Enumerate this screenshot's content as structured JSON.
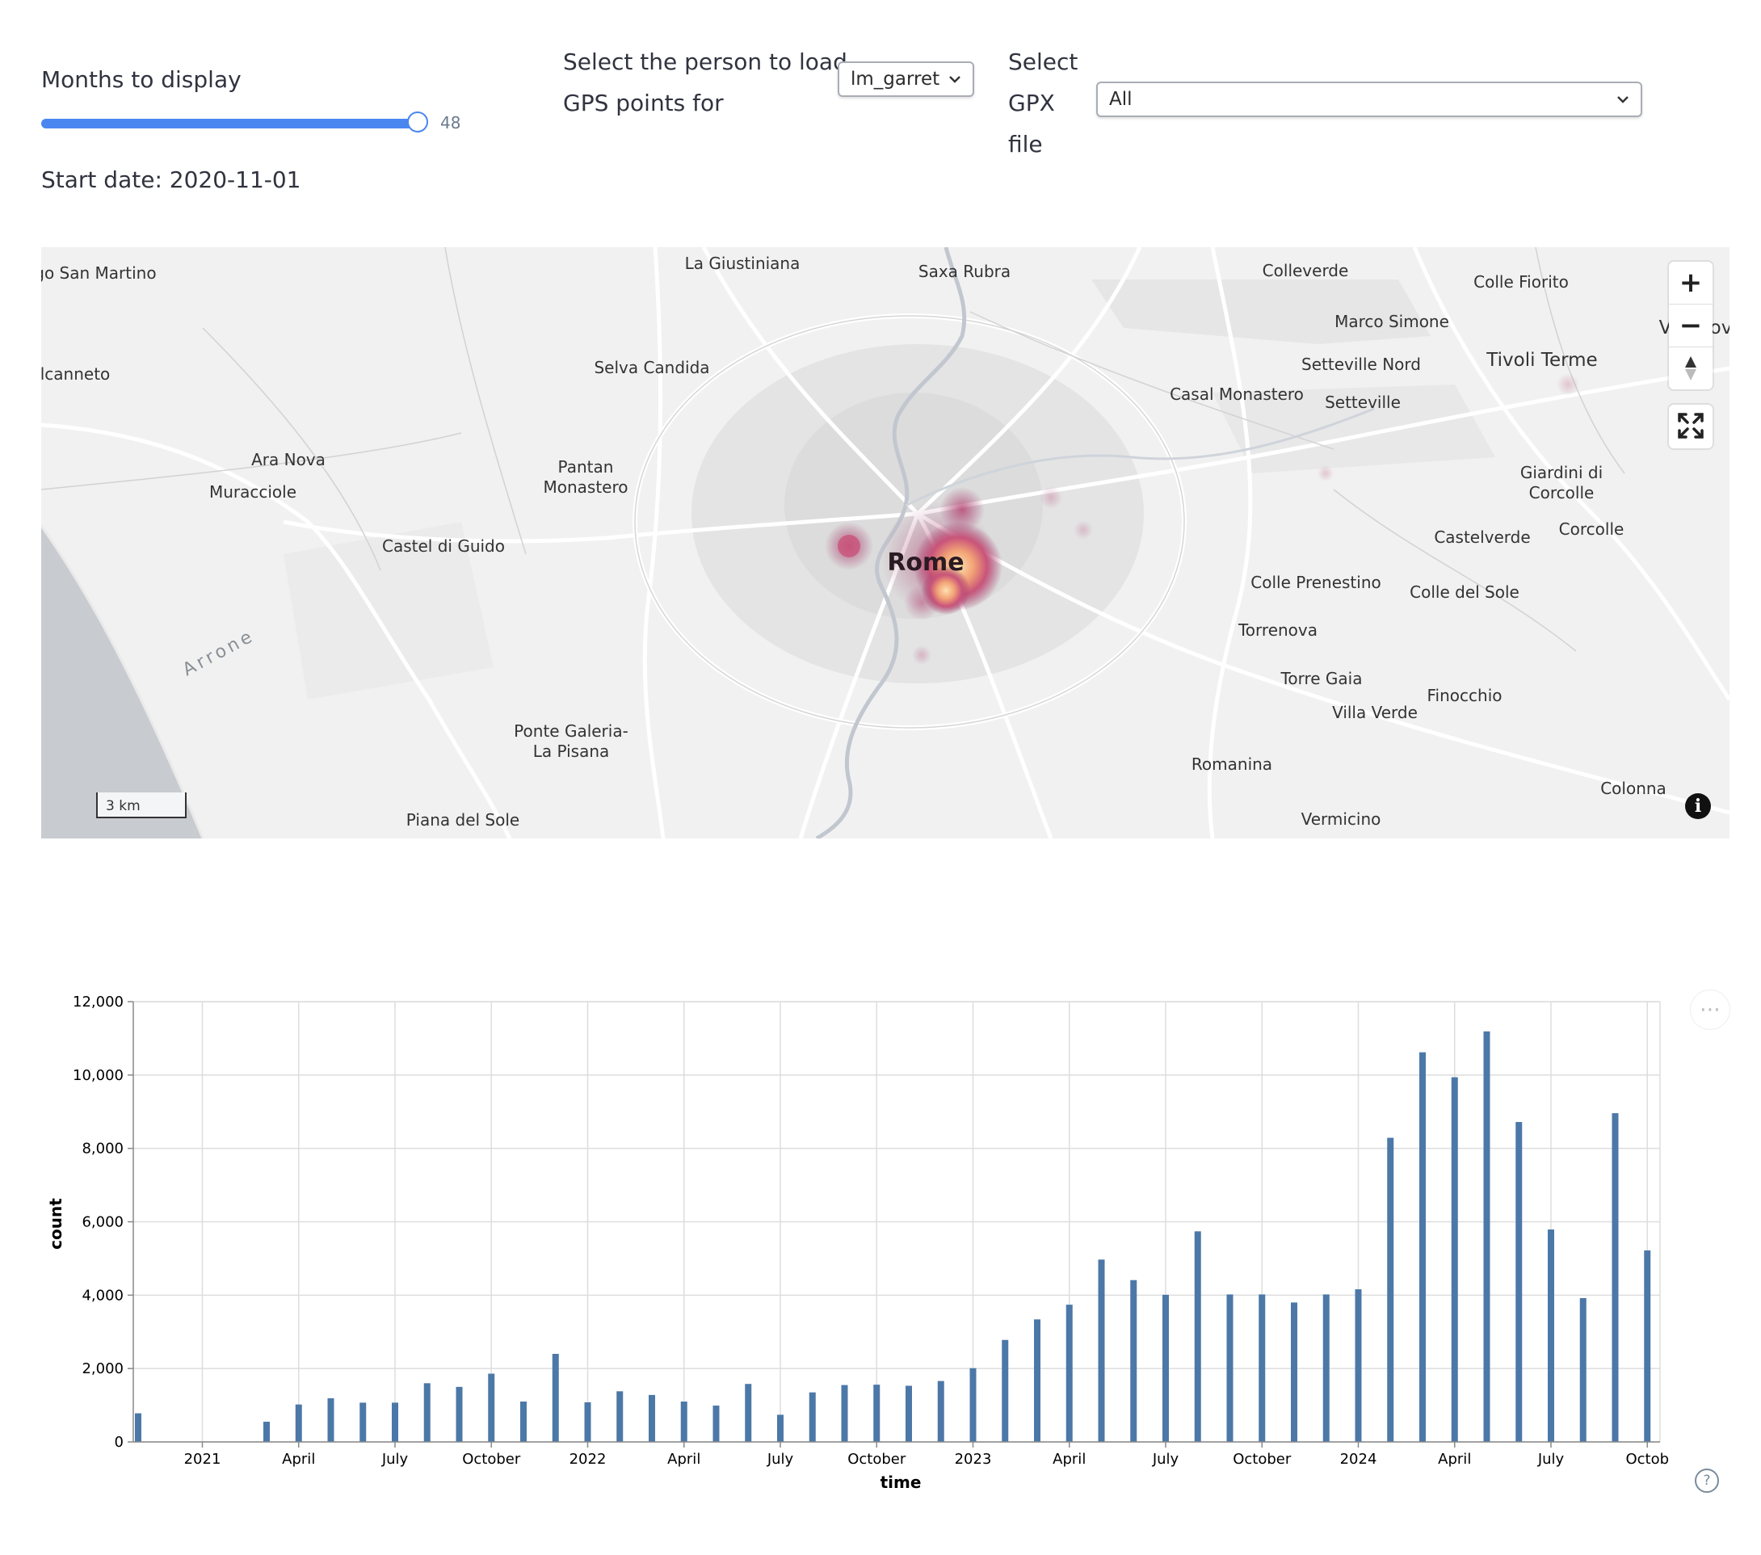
{
  "controls": {
    "months_label": "Months to display",
    "months_value": 48,
    "months_max": 48,
    "start_date": "Start date: 2020-11-01",
    "person_label_line1": "Select the person to load",
    "person_label_line2": "GPS points for",
    "person_value": "lm_garret",
    "gpx_label_line1": "Select",
    "gpx_label_line2": "GPX",
    "gpx_label_line3": "file",
    "gpx_value": "All"
  },
  "map": {
    "scale_label": "3 km",
    "zoom_in": "+",
    "zoom_out": "−",
    "places": [
      "Borgo San\nMartino",
      "La Giustiniana",
      "Saxa Rubra",
      "Colleverde",
      "Colle Fiorito",
      "Marco Simone",
      "Villanova",
      "lcanneto",
      "Selva Candida",
      "Setteville Nord",
      "Tivoli Terme",
      "Casal Monastero",
      "Setteville",
      "Ara Nova",
      "Pantan\nMonastero",
      "Muracciole",
      "Giardini di\nCorcolle",
      "Castel di Guido",
      "Rome",
      "Castelverde",
      "Corcolle",
      "Colle Prenestino",
      "Colle del Sole",
      "Arrone",
      "Torrenova",
      "Torre Gaia",
      "Finocchio",
      "Villa Verde",
      "Ponte Galeria-\nLa Pisana",
      "Romanina",
      "Colonna",
      "Piana del Sole",
      "Vermicino"
    ]
  },
  "chart_data": {
    "type": "bar",
    "xlabel": "time",
    "ylabel": "count",
    "ylim": [
      0,
      12000
    ],
    "yticks": [
      "0",
      "2,000",
      "4,000",
      "6,000",
      "8,000",
      "10,000",
      "12,000"
    ],
    "xticks": [
      "2021",
      "April",
      "July",
      "October",
      "2022",
      "April",
      "July",
      "October",
      "2023",
      "April",
      "July",
      "October",
      "2024",
      "April",
      "July",
      "Octob"
    ],
    "grid": true,
    "bar_color": "#4c78a8",
    "x": [
      "2020-11",
      "2020-12",
      "2021-01",
      "2021-02",
      "2021-03",
      "2021-04",
      "2021-05",
      "2021-06",
      "2021-07",
      "2021-08",
      "2021-09",
      "2021-10",
      "2021-11",
      "2021-12",
      "2022-01",
      "2022-02",
      "2022-03",
      "2022-04",
      "2022-05",
      "2022-06",
      "2022-07",
      "2022-08",
      "2022-09",
      "2022-10",
      "2022-11",
      "2022-12",
      "2023-01",
      "2023-02",
      "2023-03",
      "2023-04",
      "2023-05",
      "2023-06",
      "2023-07",
      "2023-08",
      "2023-09",
      "2023-10",
      "2023-11",
      "2023-12",
      "2024-01",
      "2024-02",
      "2024-03",
      "2024-04",
      "2024-05",
      "2024-06",
      "2024-07",
      "2024-08",
      "2024-09",
      "2024-10"
    ],
    "values": [
      780,
      0,
      0,
      0,
      550,
      1020,
      1190,
      1070,
      1070,
      1600,
      1500,
      1860,
      1100,
      2400,
      1080,
      1380,
      1280,
      1100,
      990,
      1580,
      740,
      1350,
      1550,
      1560,
      1530,
      1660,
      2010,
      2780,
      3340,
      3740,
      4970,
      4410,
      4010,
      5740,
      4020,
      4020,
      3800,
      4020,
      4160,
      8290,
      10620,
      9940,
      11190,
      8720,
      5790,
      3920,
      8960,
      5220
    ]
  }
}
